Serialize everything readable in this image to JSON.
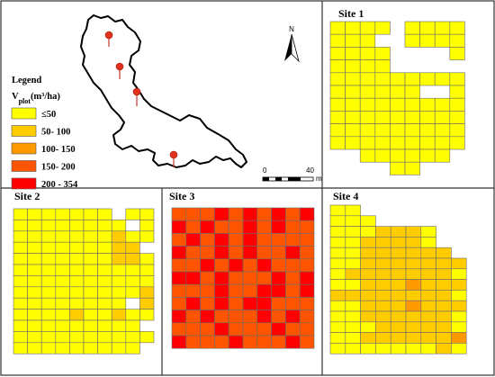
{
  "legend": {
    "title": "Legend",
    "variable_main": "V",
    "variable_sub": "plot",
    "variable_unit": "(m³/ha)",
    "classes": [
      {
        "label": "≤50",
        "color": "#ffff00"
      },
      {
        "label": "50- 100",
        "color": "#ffcc00"
      },
      {
        "label": "100- 150",
        "color": "#ff9900"
      },
      {
        "label": "150- 200",
        "color": "#ff5500"
      },
      {
        "label": "200 - 354",
        "color": "#ff0000"
      }
    ]
  },
  "north_arrow": {
    "label": "N"
  },
  "scale_bar": {
    "start": "0",
    "end": "40",
    "unit": "m"
  },
  "sites": [
    {
      "title": "Site 1",
      "grid": [
        "1111.1111",
        "111..1111",
        "1111....1",
        "1111.....",
        "111111111",
        "111111..1",
        "111111111",
        "111111111",
        "111111111",
        "111111111",
        "..111111.",
        "....11..."
      ]
    },
    {
      "title": "Site 2",
      "grid": [
        "1111111.11",
        "11111111.1",
        "1111111211",
        "111111122.",
        "1111111221",
        "1111111111",
        "1111111111",
        "1111111112",
        "11111111.2",
        "1111211211",
        "111111111.",
        "1111111111",
        "111111111."
      ]
    },
    {
      "title": "Site 3",
      "grid": [
        "4445454545",
        "5454454544",
        "4545454444",
        "5445454454",
        "4454545444",
        "5545444545",
        "4445445545",
        "4545455444",
        "5454445454",
        "4445444544",
        "5444544454"
      ]
    },
    {
      "title": "Site 4",
      "grid": [
        "11.......",
        "111......",
        "1112221..",
        "1122221..",
        "11222222.",
        "112222222",
        "122222221",
        "112223222",
        "222222221",
        "112223222",
        "112222221",
        "111222221",
        "112222223",
        "111111121"
      ]
    }
  ],
  "overview_map": {
    "markers": 4
  }
}
